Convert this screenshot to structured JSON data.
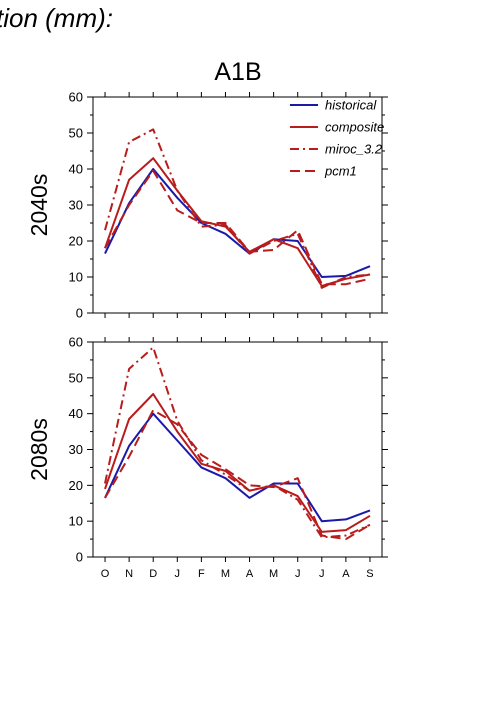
{
  "header_text": "tion (mm):",
  "title": "A1B",
  "colors": {
    "historical": "#1a1aaa",
    "future": "#b81c1c",
    "axis": "#000000"
  },
  "chart_data": [
    {
      "type": "line",
      "row_label": "2040s",
      "categories": [
        "O",
        "N",
        "D",
        "J",
        "F",
        "M",
        "A",
        "M",
        "J",
        "J",
        "A",
        "S"
      ],
      "ylim": [
        0,
        60
      ],
      "yticks": [
        0,
        10,
        20,
        30,
        40,
        50,
        60
      ],
      "legend": "top-right",
      "series": [
        {
          "name": "historical",
          "style": "solid",
          "color": "#1a1aaa",
          "values": [
            16.5,
            30.5,
            40,
            32,
            25,
            22,
            16.5,
            20.5,
            20,
            10,
            10.3,
            13
          ]
        },
        {
          "name": "composite",
          "style": "solid",
          "color": "#b81c1c",
          "values": [
            18,
            37,
            43,
            34,
            25.5,
            24,
            17,
            20.5,
            18,
            7.5,
            9.5,
            10.7
          ]
        },
        {
          "name": "miroc_3.2",
          "style": "dashdot",
          "color": "#b81c1c",
          "values": [
            23,
            47.5,
            51,
            34,
            24,
            24.5,
            16.5,
            20,
            22,
            7,
            10,
            10.7
          ]
        },
        {
          "name": "pcm1",
          "style": "dashed",
          "color": "#b81c1c",
          "values": [
            18,
            30,
            39.5,
            28.5,
            25,
            25,
            17,
            17.5,
            23,
            8,
            8,
            9.5
          ]
        }
      ]
    },
    {
      "type": "line",
      "row_label": "2080s",
      "categories": [
        "O",
        "N",
        "D",
        "J",
        "F",
        "M",
        "A",
        "M",
        "J",
        "J",
        "A",
        "S"
      ],
      "ylim": [
        0,
        60
      ],
      "yticks": [
        0,
        10,
        20,
        30,
        40,
        50,
        60
      ],
      "series": [
        {
          "name": "historical",
          "style": "solid",
          "color": "#1a1aaa",
          "values": [
            16.5,
            31,
            40,
            32.5,
            25,
            22,
            16.5,
            20.5,
            20.5,
            10,
            10.5,
            13
          ]
        },
        {
          "name": "composite",
          "style": "solid",
          "color": "#b81c1c",
          "values": [
            19,
            38.5,
            45.5,
            35,
            26,
            24,
            18.5,
            20,
            17,
            7,
            7.5,
            11.5
          ]
        },
        {
          "name": "miroc_3.2",
          "style": "dashdot",
          "color": "#b81c1c",
          "values": [
            20.5,
            52.5,
            58.5,
            38,
            27,
            23,
            18.5,
            20,
            16,
            5.5,
            6,
            9
          ]
        },
        {
          "name": "pcm1",
          "style": "dashed",
          "color": "#b81c1c",
          "values": [
            16.5,
            28,
            41,
            37,
            28.5,
            24.5,
            20,
            19.5,
            22,
            6,
            5,
            9
          ]
        }
      ]
    }
  ]
}
